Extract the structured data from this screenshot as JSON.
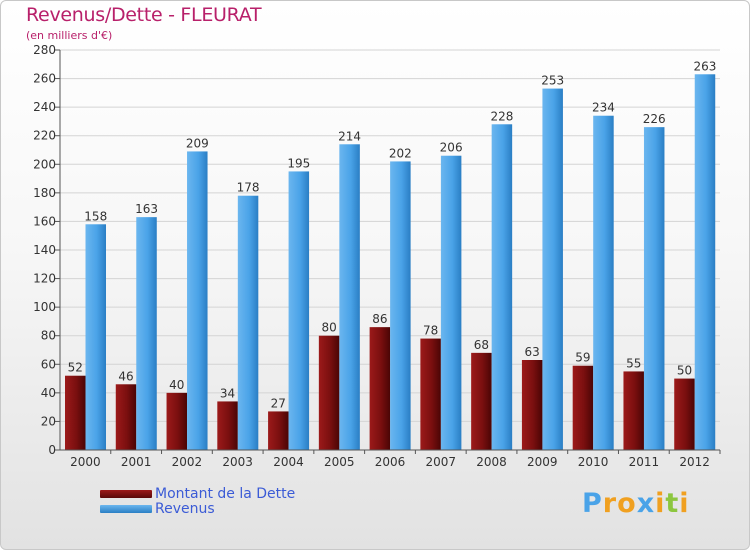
{
  "header": {
    "title": "Revenus/Dette - FLEURAT",
    "subtitle": "(en milliers d'€)"
  },
  "legend": {
    "items": [
      {
        "label": "Montant de la Dette",
        "color": "#7a0f0f"
      },
      {
        "label": "Revenus",
        "color": "#4aa3e8"
      }
    ]
  },
  "logo": {
    "letters": [
      "P",
      "r",
      "o",
      "x",
      "i",
      "t",
      "i"
    ],
    "colors": [
      "#4aa3e8",
      "#f0a020",
      "#f0a020",
      "#4aa3e8",
      "#f0a020",
      "#8cc63f",
      "#f0a020"
    ]
  },
  "chart_data": {
    "type": "bar",
    "title": "Revenus/Dette - FLEURAT",
    "subtitle": "(en milliers d'€)",
    "categories": [
      "2000",
      "2001",
      "2002",
      "2003",
      "2004",
      "2005",
      "2006",
      "2007",
      "2008",
      "2009",
      "2010",
      "2011",
      "2012"
    ],
    "series": [
      {
        "name": "Montant de la Dette",
        "color": "#7a0f0f",
        "values": [
          52,
          46,
          40,
          34,
          27,
          80,
          86,
          78,
          68,
          63,
          59,
          55,
          50
        ]
      },
      {
        "name": "Revenus",
        "color": "#4aa3e8",
        "values": [
          158,
          163,
          209,
          178,
          195,
          214,
          202,
          206,
          228,
          253,
          234,
          226,
          263
        ]
      }
    ],
    "yticks": [
      0,
      20,
      40,
      60,
      80,
      100,
      120,
      140,
      160,
      180,
      200,
      220,
      240,
      260,
      280
    ],
    "ylim": [
      0,
      280
    ],
    "grid": true,
    "legend_position": "bottom-left"
  }
}
